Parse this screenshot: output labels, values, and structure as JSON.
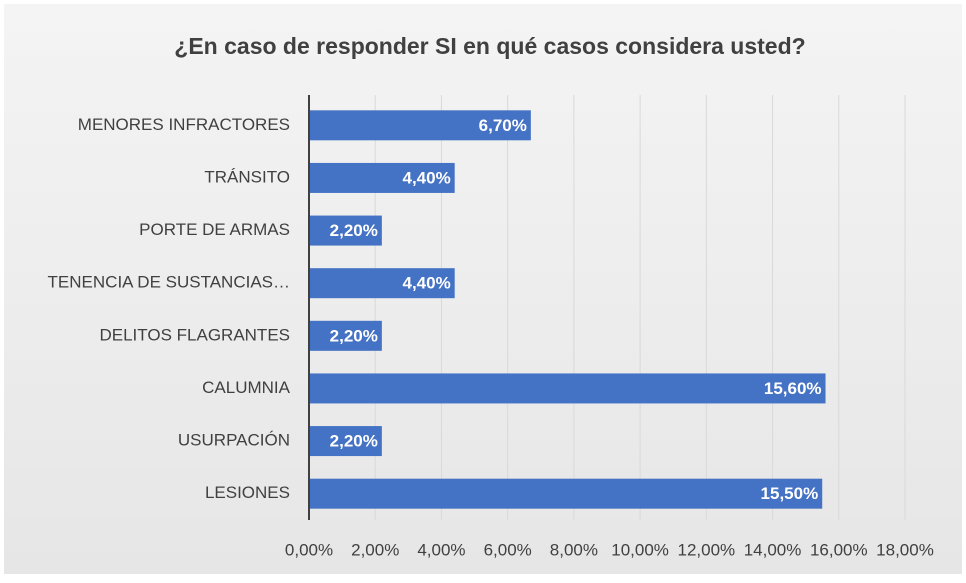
{
  "chart_data": {
    "type": "bar",
    "orientation": "horizontal",
    "title": "¿En caso de responder SI en qué casos considera usted?",
    "categories": [
      "MENORES INFRACTORES",
      "TRÁNSITO",
      "PORTE DE ARMAS",
      "TENENCIA DE SUSTANCIAS…",
      "DELITOS FLAGRANTES",
      "CALUMNIA",
      "USURPACIÓN",
      "LESIONES"
    ],
    "values": [
      6.7,
      4.4,
      2.2,
      4.4,
      2.2,
      15.6,
      2.2,
      15.5
    ],
    "value_labels": [
      "6,70%",
      "4,40%",
      "2,20%",
      "4,40%",
      "2,20%",
      "15,60%",
      "2,20%",
      "15,50%"
    ],
    "color": "#4472c4",
    "xlim": [
      0,
      18
    ],
    "xticks": [
      {
        "value": 0,
        "label": "0,00%"
      },
      {
        "value": 2,
        "label": "2,00%"
      },
      {
        "value": 4,
        "label": "4,00%"
      },
      {
        "value": 6,
        "label": "6,00%"
      },
      {
        "value": 8,
        "label": "8,00%"
      },
      {
        "value": 10,
        "label": "10,00%"
      },
      {
        "value": 12,
        "label": "12,00%"
      },
      {
        "value": 14,
        "label": "14,00%"
      },
      {
        "value": 16,
        "label": "16,00%"
      },
      {
        "value": 18,
        "label": "18,00%"
      }
    ],
    "grid": true
  }
}
